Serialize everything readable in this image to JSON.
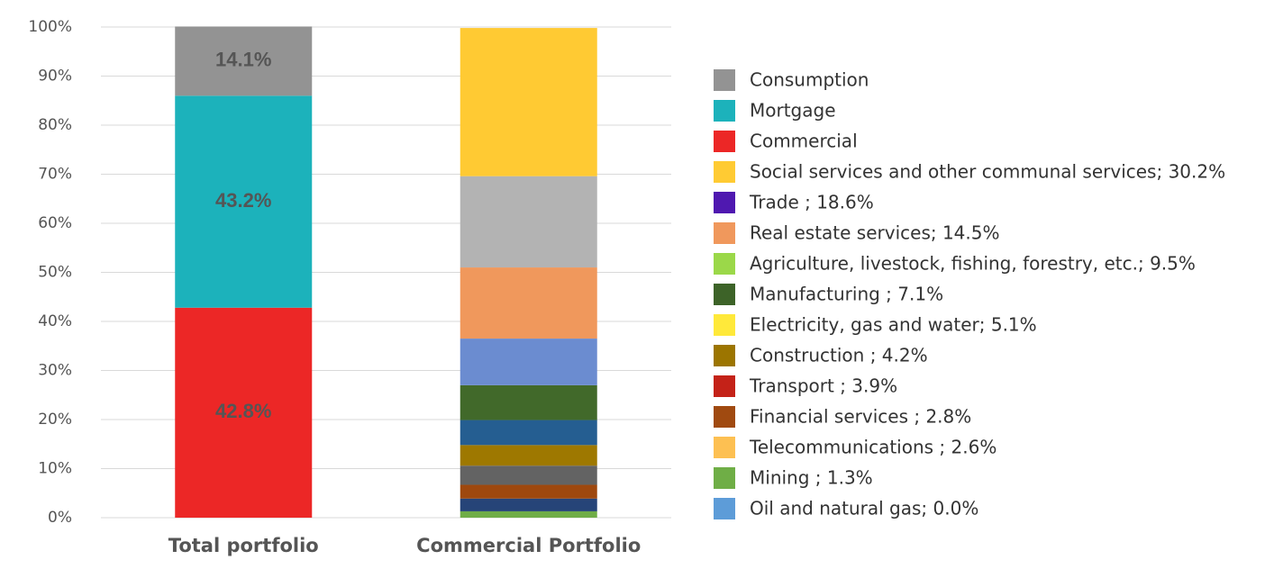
{
  "chart_data": {
    "type": "stacked_bar",
    "categories": [
      "Total portfolio",
      "Commercial Portfolio"
    ],
    "ylim": [
      0,
      100
    ],
    "yticks": [
      {
        "value": 0,
        "label": "0%"
      },
      {
        "value": 10,
        "label": "10%"
      },
      {
        "value": 20,
        "label": "20%"
      },
      {
        "value": 30,
        "label": "30%"
      },
      {
        "value": 40,
        "label": "40%"
      },
      {
        "value": 50,
        "label": "50%"
      },
      {
        "value": 60,
        "label": "60%"
      },
      {
        "value": 70,
        "label": "70%"
      },
      {
        "value": 80,
        "label": "80%"
      },
      {
        "value": 90,
        "label": "90%"
      },
      {
        "value": 100,
        "label": "100%"
      }
    ],
    "grid": true,
    "legend": "right",
    "series": [
      {
        "name": "Consumption",
        "color": "#939393",
        "bar_color": "#939393",
        "values": [
          14.1,
          null
        ],
        "value_labels": [
          "14.1%",
          null
        ]
      },
      {
        "name": "Mortgage",
        "color": "#1cb2bb",
        "bar_color": "#1cb2bb",
        "values": [
          43.2,
          null
        ],
        "value_labels": [
          "43.2%",
          null
        ]
      },
      {
        "name": "Commercial",
        "color": "#ec2726",
        "bar_color": "#ec2726",
        "values": [
          42.8,
          null
        ],
        "value_labels": [
          "42.8%",
          null
        ]
      },
      {
        "name": "Social services and other communal services; 30.2%",
        "color": "#ffcb33",
        "bar_color": "#ffca33",
        "values": [
          null,
          30.2
        ]
      },
      {
        "name": "Trade ; 18.6%",
        "color": "#4f18b0",
        "bar_color": "#b3b3b3",
        "values": [
          null,
          18.6
        ]
      },
      {
        "name": "Real estate services; 14.5%",
        "color": "#f0985c",
        "bar_color": "#f0985c",
        "values": [
          null,
          14.5
        ]
      },
      {
        "name": "Agriculture, livestock, fishing, forestry, etc.; 9.5%",
        "color": "#9bd849",
        "bar_color": "#6b8cd0",
        "values": [
          null,
          9.5
        ]
      },
      {
        "name": "Manufacturing ; 7.1%",
        "color": "#3d6328",
        "bar_color": "#41692a",
        "values": [
          null,
          7.1
        ]
      },
      {
        "name": "Electricity, gas and water; 5.1%",
        "color": "#ffe93a",
        "bar_color": "#255e91",
        "values": [
          null,
          5.1
        ]
      },
      {
        "name": "Construction ; 4.2%",
        "color": "#9c7500",
        "bar_color": "#9e7800",
        "values": [
          null,
          4.2
        ]
      },
      {
        "name": "Transport ; 3.9%",
        "color": "#c42218",
        "bar_color": "#636363",
        "values": [
          null,
          3.9
        ]
      },
      {
        "name": "Financial services ; 2.8%",
        "color": "#a04a10",
        "bar_color": "#9e480e",
        "values": [
          null,
          2.8
        ]
      },
      {
        "name": "Telecommunications ; 2.6%",
        "color": "#fdc052",
        "bar_color": "#264478",
        "values": [
          null,
          2.6
        ]
      },
      {
        "name": "Mining ; 1.3%",
        "color": "#6fae46",
        "bar_color": "#70ad47",
        "values": [
          null,
          1.3
        ]
      },
      {
        "name": "Oil and natural gas; 0.0%",
        "color": "#5d9cd8",
        "bar_color": "#5b9bd5",
        "values": [
          null,
          0.0
        ]
      }
    ]
  }
}
